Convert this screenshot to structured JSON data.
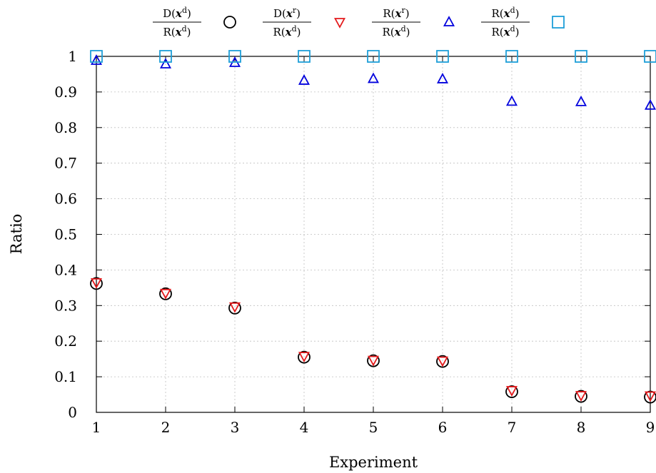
{
  "chart_data": {
    "type": "scatter",
    "xlabel": "Experiment",
    "ylabel": "Ratio",
    "x": [
      1,
      2,
      3,
      4,
      5,
      6,
      7,
      8,
      9
    ],
    "xlim": [
      1,
      9
    ],
    "ylim": [
      0,
      1
    ],
    "xticks": [
      "1",
      "2",
      "3",
      "4",
      "5",
      "6",
      "7",
      "8",
      "9"
    ],
    "yticks": [
      "0",
      "0.1",
      "0.2",
      "0.3",
      "0.4",
      "0.5",
      "0.6",
      "0.7",
      "0.8",
      "0.9",
      "1"
    ],
    "grid": true,
    "legend_position": "top",
    "series": [
      {
        "legend": {
          "num_fn": "D",
          "num_sup": "d",
          "den_fn": "R",
          "den_sup": "d"
        },
        "marker": "circle",
        "color": "#000000",
        "values": [
          0.362,
          0.333,
          0.293,
          0.155,
          0.145,
          0.143,
          0.058,
          0.045,
          0.043
        ]
      },
      {
        "legend": {
          "num_fn": "D",
          "num_sup": "r",
          "den_fn": "R",
          "den_sup": "d"
        },
        "marker": "triangle-down",
        "color": "#e41a1c",
        "values": [
          0.365,
          0.335,
          0.297,
          0.158,
          0.147,
          0.145,
          0.062,
          0.048,
          0.047
        ]
      },
      {
        "legend": {
          "num_fn": "R",
          "num_sup": "r",
          "den_fn": "R",
          "den_sup": "d"
        },
        "marker": "triangle-up",
        "color": "#0000dd",
        "values": [
          0.988,
          0.978,
          0.982,
          0.932,
          0.937,
          0.936,
          0.873,
          0.872,
          0.862
        ]
      },
      {
        "legend": {
          "num_fn": "R",
          "num_sup": "d",
          "den_fn": "R",
          "den_sup": "d"
        },
        "marker": "square",
        "color": "#1e9fd8",
        "values": [
          1.0,
          1.0,
          1.0,
          1.0,
          1.0,
          1.0,
          1.0,
          1.0,
          1.0
        ]
      }
    ]
  }
}
